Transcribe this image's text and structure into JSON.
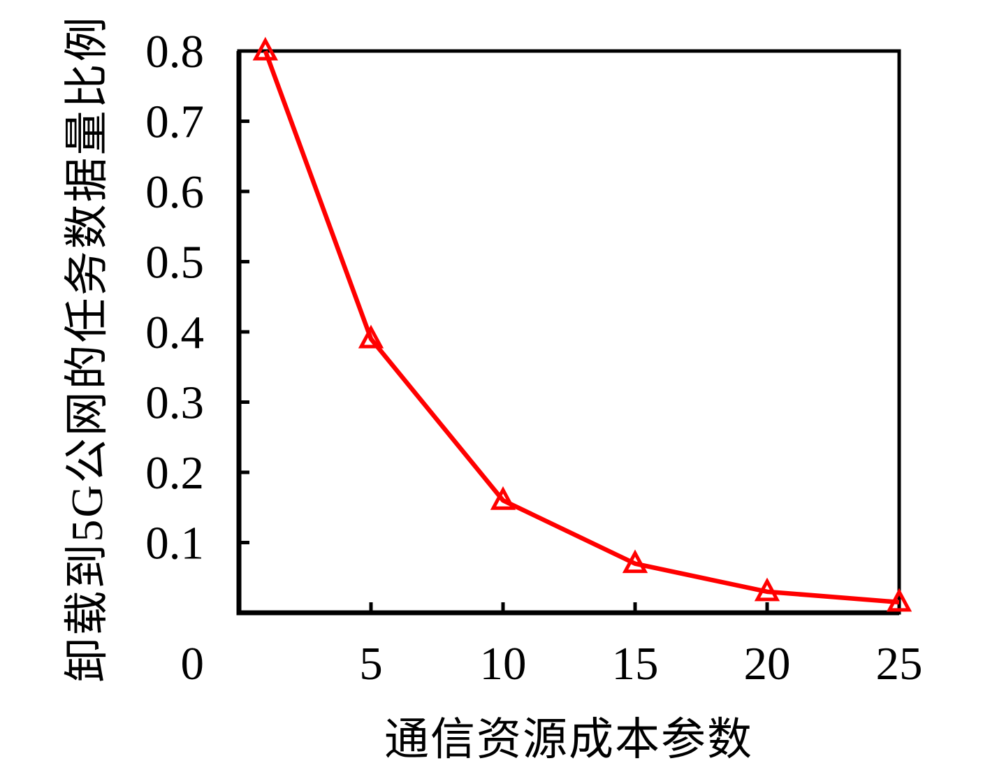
{
  "figure": {
    "background_color": "#ffffff",
    "axis_color": "#000000",
    "series_color": "#ff0000"
  },
  "chart_data": {
    "type": "line",
    "title": "",
    "xlabel": "通信资源成本参数",
    "ylabel": "卸载到5G公网的任务数据量比例",
    "x": [
      1,
      5,
      10,
      15,
      20,
      25
    ],
    "y": [
      0.8,
      0.39,
      0.16,
      0.07,
      0.03,
      0.015
    ],
    "xlim": [
      0,
      25
    ],
    "ylim": [
      0,
      0.8
    ],
    "x_ticks": [
      0,
      5,
      10,
      15,
      20,
      25
    ],
    "x_tick_labels": [
      "0",
      "5",
      "10",
      "15",
      "20",
      "25"
    ],
    "y_ticks": [
      0.1,
      0.2,
      0.3,
      0.4,
      0.5,
      0.6,
      0.7,
      0.8
    ],
    "y_tick_labels": [
      "0.1",
      "0.2",
      "0.3",
      "0.4",
      "0.5",
      "0.6",
      "0.7",
      "0.8"
    ],
    "grid": false,
    "legend_visible": false,
    "marker": "triangle-up-open",
    "line_color": "#ff0000",
    "marker_color": "#ff0000",
    "frame": "full-box",
    "tick_direction": "in"
  }
}
